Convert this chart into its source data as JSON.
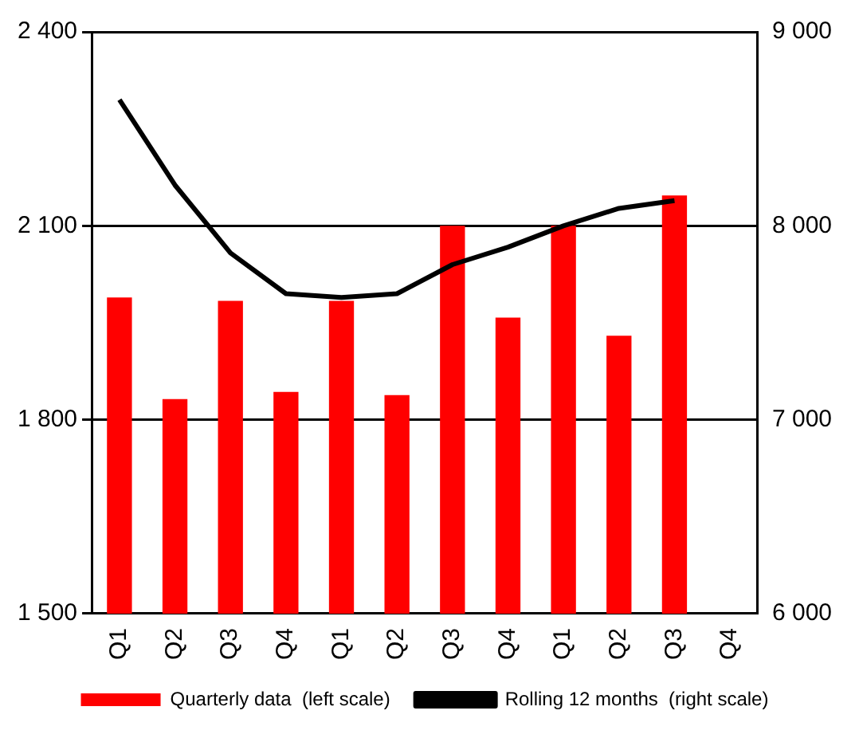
{
  "chart_data": {
    "type": "bar",
    "categories": [
      "Q1",
      "Q2",
      "Q3",
      "Q4",
      "Q1",
      "Q2",
      "Q3",
      "Q4",
      "Q1",
      "Q2",
      "Q3",
      "Q4"
    ],
    "series": [
      {
        "name": "Quarterly data  (left scale)",
        "color": "#ff0000",
        "values": [
          1989,
          1832,
          1984,
          1843,
          1984,
          1838,
          2100,
          1958,
          2100,
          1930,
          2147,
          null
        ]
      },
      {
        "name": "Rolling 12 months  (right scale)",
        "type": "line",
        "axis": "y2",
        "color": "#000000",
        "values": [
          8650,
          8210,
          7860,
          7650,
          7630,
          7650,
          7800,
          7890,
          8000,
          8090,
          8130,
          null
        ]
      }
    ],
    "ylim": [
      1500,
      2400
    ],
    "yticks": [
      {
        "value": 1500,
        "label": "1 500"
      },
      {
        "value": 1800,
        "label": "1 800"
      },
      {
        "value": 2100,
        "label": "2 100"
      },
      {
        "value": 2400,
        "label": "2 400"
      }
    ],
    "y2lim": [
      6000,
      9000
    ],
    "y2ticks": [
      {
        "value": 6000,
        "label": "6 000"
      },
      {
        "value": 7000,
        "label": "7 000"
      },
      {
        "value": 8000,
        "label": "8 000"
      },
      {
        "value": 9000,
        "label": "9 000"
      }
    ],
    "grid": "y",
    "legend": "bottom",
    "marker": "none"
  }
}
